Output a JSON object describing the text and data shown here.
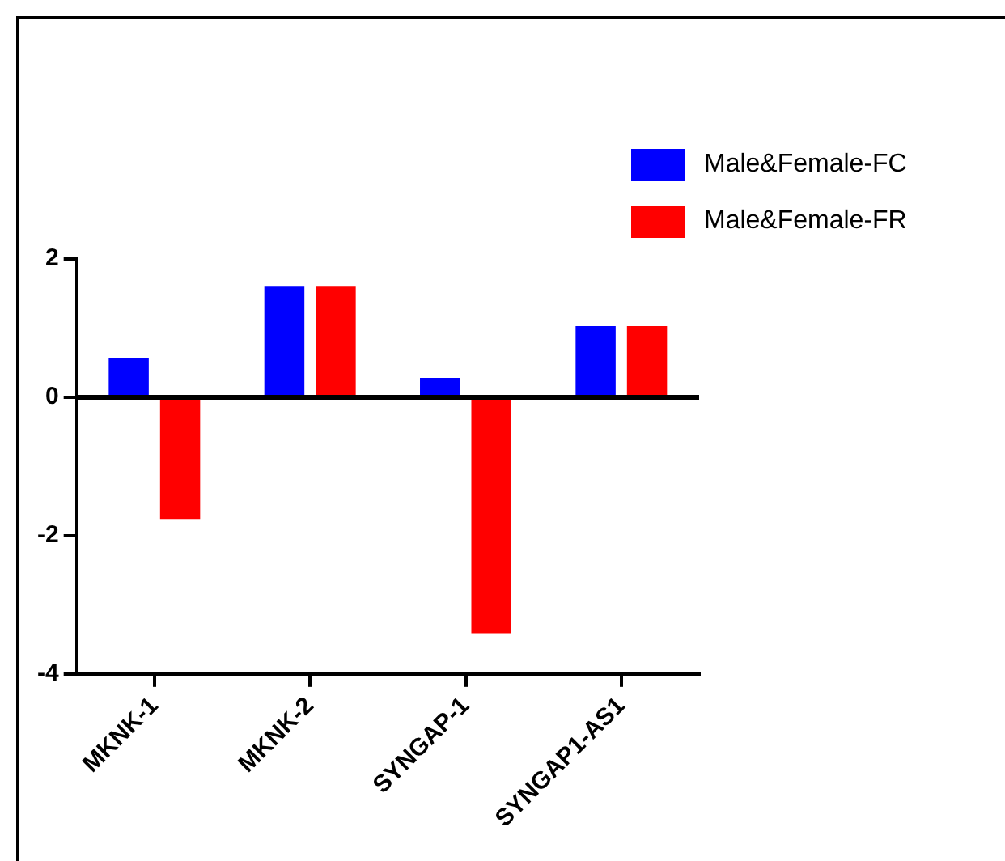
{
  "chart_data": {
    "type": "bar",
    "categories": [
      "MKNK-1",
      "MKNK-2",
      "SYNGAP-1",
      "SYNGAP1-AS1"
    ],
    "series": [
      {
        "name": "Male&Female-FC",
        "color": "#0000ff",
        "values": [
          0.57,
          1.6,
          0.28,
          1.03
        ]
      },
      {
        "name": "Male&Female-FR",
        "color": "#ff0000",
        "values": [
          -1.76,
          1.6,
          -3.41,
          1.03
        ]
      }
    ],
    "ylim": [
      -4,
      2
    ],
    "yticks": [
      -4,
      -2,
      0,
      2
    ],
    "ref_lines": [
      {
        "axis": "y",
        "value": 0
      }
    ],
    "grid": false,
    "legend": "top right"
  }
}
